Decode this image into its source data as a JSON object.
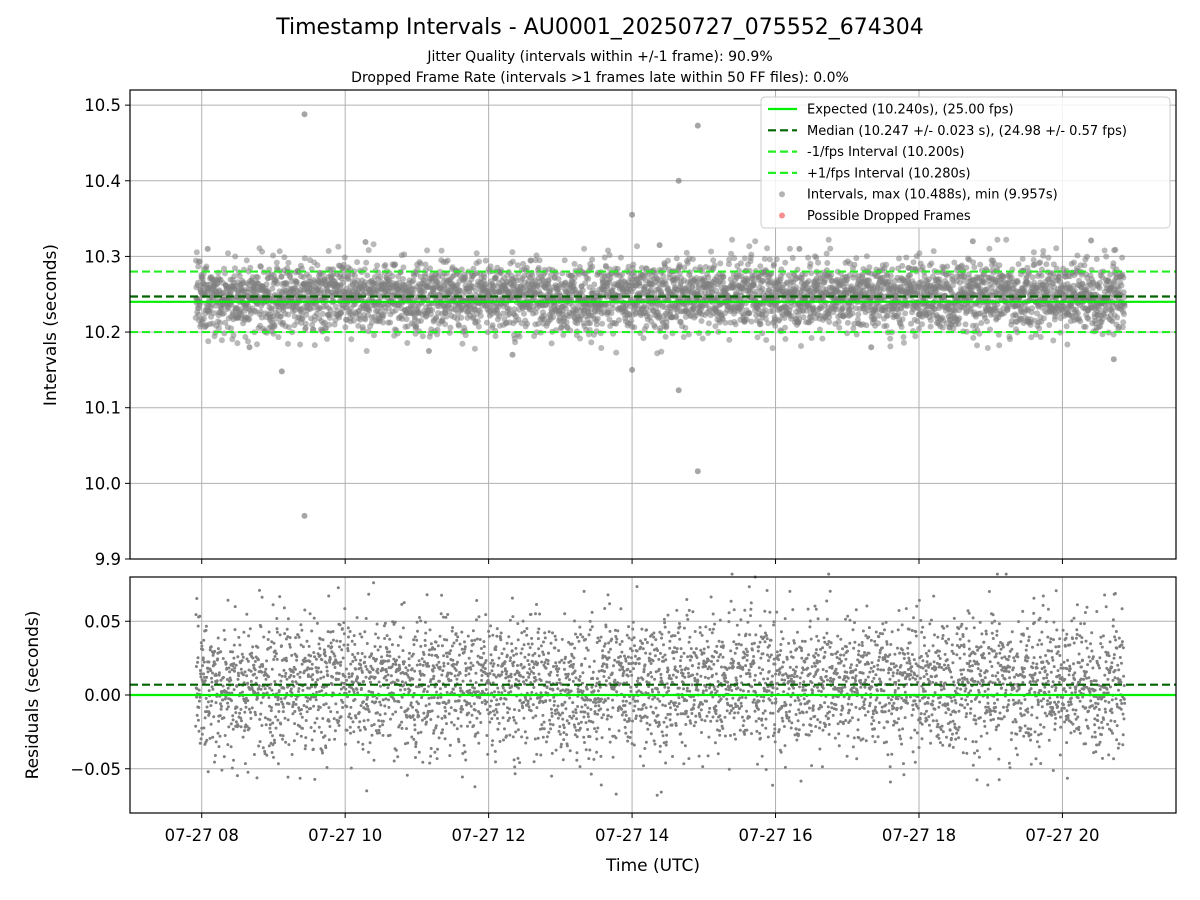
{
  "figure": {
    "title": "Timestamp Intervals - AU0001_20250727_075552_674304",
    "subtitle_1": "Jitter Quality (intervals within +/-1 frame): 90.9%",
    "subtitle_2": "Dropped Frame Rate (intervals >1 frames late within 50 FF files): 0.0%"
  },
  "colors": {
    "expected": "#00ee00",
    "median": "#006400",
    "interval_bounds": "#22ee22",
    "points": "#808080",
    "dropped": "#ee4444",
    "grid": "#b0b0b0"
  },
  "chart_data": [
    {
      "type": "scatter",
      "name": "intervals",
      "ylabel": "Intervals (seconds)",
      "ylim": [
        9.9,
        10.52
      ],
      "y_ticks": [
        "9.9",
        "10.0",
        "10.1",
        "10.2",
        "10.3",
        "10.4",
        "10.5"
      ],
      "x_range_hours": [
        "2025-07-27 07:55",
        "2025-07-27 20:52"
      ],
      "grid": true,
      "legend_position": "top-right",
      "reference_lines": [
        {
          "label": "Expected (10.240s), (25.00 fps)",
          "y": 10.24,
          "style": "solid"
        },
        {
          "label": "Median (10.247 +/- 0.023 s), (24.98 +/- 0.57 fps)",
          "y": 10.247,
          "style": "dashed"
        },
        {
          "label": "-1/fps Interval (10.200s)",
          "y": 10.2,
          "style": "dashed"
        },
        {
          "label": "+1/fps Interval (10.280s)",
          "y": 10.28,
          "style": "dashed"
        }
      ],
      "series": [
        {
          "name": "Intervals, max (10.488s), min (9.957s)",
          "max": 10.488,
          "min": 9.957,
          "median": 10.247,
          "spread": 0.023
        },
        {
          "name": "Possible Dropped Frames",
          "count": 0
        }
      ],
      "outliers": [
        {
          "x": "2025-07-27 09:26",
          "y": 10.488
        },
        {
          "x": "2025-07-27 14:55",
          "y": 10.473
        },
        {
          "x": "2025-07-27 14:39",
          "y": 10.4
        },
        {
          "x": "2025-07-27 14:00",
          "y": 10.355
        },
        {
          "x": "2025-07-27 14:23",
          "y": 10.315
        },
        {
          "x": "2025-07-27 10:17",
          "y": 10.319
        },
        {
          "x": "2025-07-27 20:24",
          "y": 10.321
        },
        {
          "x": "2025-07-27 08:05",
          "y": 10.31
        },
        {
          "x": "2025-07-27 18:45",
          "y": 10.32
        },
        {
          "x": "2025-07-27 16:20",
          "y": 10.31
        },
        {
          "x": "2025-07-27 09:07",
          "y": 10.148
        },
        {
          "x": "2025-07-27 14:00",
          "y": 10.15
        },
        {
          "x": "2025-07-27 14:39",
          "y": 10.123
        },
        {
          "x": "2025-07-27 14:55",
          "y": 10.016
        },
        {
          "x": "2025-07-27 09:26",
          "y": 9.957
        },
        {
          "x": "2025-07-27 11:10",
          "y": 10.175
        },
        {
          "x": "2025-07-27 12:20",
          "y": 10.17
        },
        {
          "x": "2025-07-27 20:43",
          "y": 10.164
        },
        {
          "x": "2025-07-27 08:40",
          "y": 10.18
        },
        {
          "x": "2025-07-27 17:20",
          "y": 10.18
        }
      ]
    },
    {
      "type": "scatter",
      "name": "residuals",
      "ylabel": "Residuals (seconds)",
      "xlabel": "Time (UTC)",
      "ylim": [
        -0.08,
        0.08
      ],
      "y_ticks": [
        "−0.05",
        "0.00",
        "0.05"
      ],
      "x_ticks": [
        "07-27 08",
        "07-27 10",
        "07-27 12",
        "07-27 14",
        "07-27 16",
        "07-27 18",
        "07-27 20"
      ],
      "grid": true,
      "reference_lines": [
        {
          "y": 0.0,
          "style": "solid"
        },
        {
          "y": 0.007,
          "style": "dashed"
        }
      ],
      "series": [
        {
          "name": "residuals",
          "median": 0.007,
          "spread": 0.023
        }
      ]
    }
  ]
}
